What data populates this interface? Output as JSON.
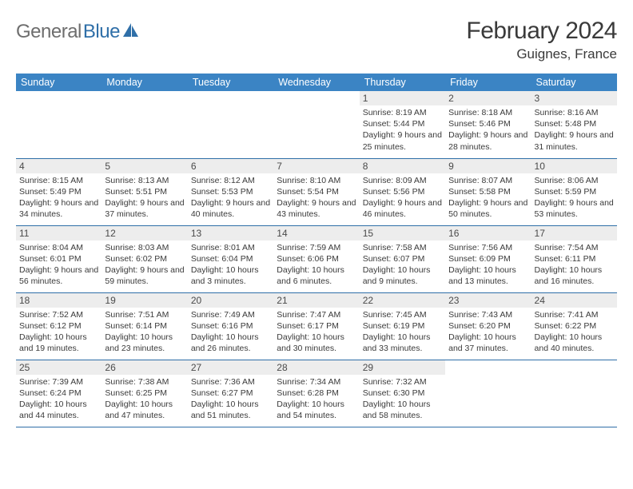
{
  "logo": {
    "text_gray": "General",
    "text_blue": "Blue"
  },
  "title": "February 2024",
  "location": "Guignes, France",
  "colors": {
    "header_bar": "#3b84c4",
    "header_text": "#ffffff",
    "daynum_bg": "#ededed",
    "cell_text": "#3a3a3a",
    "week_divider": "#2f6fa8",
    "logo_gray": "#6e6e6e",
    "logo_blue": "#2f6fa8",
    "background": "#ffffff"
  },
  "day_headers": [
    "Sunday",
    "Monday",
    "Tuesday",
    "Wednesday",
    "Thursday",
    "Friday",
    "Saturday"
  ],
  "weeks": [
    [
      {
        "n": "",
        "sr": "",
        "ss": "",
        "dl": ""
      },
      {
        "n": "",
        "sr": "",
        "ss": "",
        "dl": ""
      },
      {
        "n": "",
        "sr": "",
        "ss": "",
        "dl": ""
      },
      {
        "n": "",
        "sr": "",
        "ss": "",
        "dl": ""
      },
      {
        "n": "1",
        "sr": "Sunrise: 8:19 AM",
        "ss": "Sunset: 5:44 PM",
        "dl": "Daylight: 9 hours and 25 minutes."
      },
      {
        "n": "2",
        "sr": "Sunrise: 8:18 AM",
        "ss": "Sunset: 5:46 PM",
        "dl": "Daylight: 9 hours and 28 minutes."
      },
      {
        "n": "3",
        "sr": "Sunrise: 8:16 AM",
        "ss": "Sunset: 5:48 PM",
        "dl": "Daylight: 9 hours and 31 minutes."
      }
    ],
    [
      {
        "n": "4",
        "sr": "Sunrise: 8:15 AM",
        "ss": "Sunset: 5:49 PM",
        "dl": "Daylight: 9 hours and 34 minutes."
      },
      {
        "n": "5",
        "sr": "Sunrise: 8:13 AM",
        "ss": "Sunset: 5:51 PM",
        "dl": "Daylight: 9 hours and 37 minutes."
      },
      {
        "n": "6",
        "sr": "Sunrise: 8:12 AM",
        "ss": "Sunset: 5:53 PM",
        "dl": "Daylight: 9 hours and 40 minutes."
      },
      {
        "n": "7",
        "sr": "Sunrise: 8:10 AM",
        "ss": "Sunset: 5:54 PM",
        "dl": "Daylight: 9 hours and 43 minutes."
      },
      {
        "n": "8",
        "sr": "Sunrise: 8:09 AM",
        "ss": "Sunset: 5:56 PM",
        "dl": "Daylight: 9 hours and 46 minutes."
      },
      {
        "n": "9",
        "sr": "Sunrise: 8:07 AM",
        "ss": "Sunset: 5:58 PM",
        "dl": "Daylight: 9 hours and 50 minutes."
      },
      {
        "n": "10",
        "sr": "Sunrise: 8:06 AM",
        "ss": "Sunset: 5:59 PM",
        "dl": "Daylight: 9 hours and 53 minutes."
      }
    ],
    [
      {
        "n": "11",
        "sr": "Sunrise: 8:04 AM",
        "ss": "Sunset: 6:01 PM",
        "dl": "Daylight: 9 hours and 56 minutes."
      },
      {
        "n": "12",
        "sr": "Sunrise: 8:03 AM",
        "ss": "Sunset: 6:02 PM",
        "dl": "Daylight: 9 hours and 59 minutes."
      },
      {
        "n": "13",
        "sr": "Sunrise: 8:01 AM",
        "ss": "Sunset: 6:04 PM",
        "dl": "Daylight: 10 hours and 3 minutes."
      },
      {
        "n": "14",
        "sr": "Sunrise: 7:59 AM",
        "ss": "Sunset: 6:06 PM",
        "dl": "Daylight: 10 hours and 6 minutes."
      },
      {
        "n": "15",
        "sr": "Sunrise: 7:58 AM",
        "ss": "Sunset: 6:07 PM",
        "dl": "Daylight: 10 hours and 9 minutes."
      },
      {
        "n": "16",
        "sr": "Sunrise: 7:56 AM",
        "ss": "Sunset: 6:09 PM",
        "dl": "Daylight: 10 hours and 13 minutes."
      },
      {
        "n": "17",
        "sr": "Sunrise: 7:54 AM",
        "ss": "Sunset: 6:11 PM",
        "dl": "Daylight: 10 hours and 16 minutes."
      }
    ],
    [
      {
        "n": "18",
        "sr": "Sunrise: 7:52 AM",
        "ss": "Sunset: 6:12 PM",
        "dl": "Daylight: 10 hours and 19 minutes."
      },
      {
        "n": "19",
        "sr": "Sunrise: 7:51 AM",
        "ss": "Sunset: 6:14 PM",
        "dl": "Daylight: 10 hours and 23 minutes."
      },
      {
        "n": "20",
        "sr": "Sunrise: 7:49 AM",
        "ss": "Sunset: 6:16 PM",
        "dl": "Daylight: 10 hours and 26 minutes."
      },
      {
        "n": "21",
        "sr": "Sunrise: 7:47 AM",
        "ss": "Sunset: 6:17 PM",
        "dl": "Daylight: 10 hours and 30 minutes."
      },
      {
        "n": "22",
        "sr": "Sunrise: 7:45 AM",
        "ss": "Sunset: 6:19 PM",
        "dl": "Daylight: 10 hours and 33 minutes."
      },
      {
        "n": "23",
        "sr": "Sunrise: 7:43 AM",
        "ss": "Sunset: 6:20 PM",
        "dl": "Daylight: 10 hours and 37 minutes."
      },
      {
        "n": "24",
        "sr": "Sunrise: 7:41 AM",
        "ss": "Sunset: 6:22 PM",
        "dl": "Daylight: 10 hours and 40 minutes."
      }
    ],
    [
      {
        "n": "25",
        "sr": "Sunrise: 7:39 AM",
        "ss": "Sunset: 6:24 PM",
        "dl": "Daylight: 10 hours and 44 minutes."
      },
      {
        "n": "26",
        "sr": "Sunrise: 7:38 AM",
        "ss": "Sunset: 6:25 PM",
        "dl": "Daylight: 10 hours and 47 minutes."
      },
      {
        "n": "27",
        "sr": "Sunrise: 7:36 AM",
        "ss": "Sunset: 6:27 PM",
        "dl": "Daylight: 10 hours and 51 minutes."
      },
      {
        "n": "28",
        "sr": "Sunrise: 7:34 AM",
        "ss": "Sunset: 6:28 PM",
        "dl": "Daylight: 10 hours and 54 minutes."
      },
      {
        "n": "29",
        "sr": "Sunrise: 7:32 AM",
        "ss": "Sunset: 6:30 PM",
        "dl": "Daylight: 10 hours and 58 minutes."
      },
      {
        "n": "",
        "sr": "",
        "ss": "",
        "dl": ""
      },
      {
        "n": "",
        "sr": "",
        "ss": "",
        "dl": ""
      }
    ]
  ]
}
